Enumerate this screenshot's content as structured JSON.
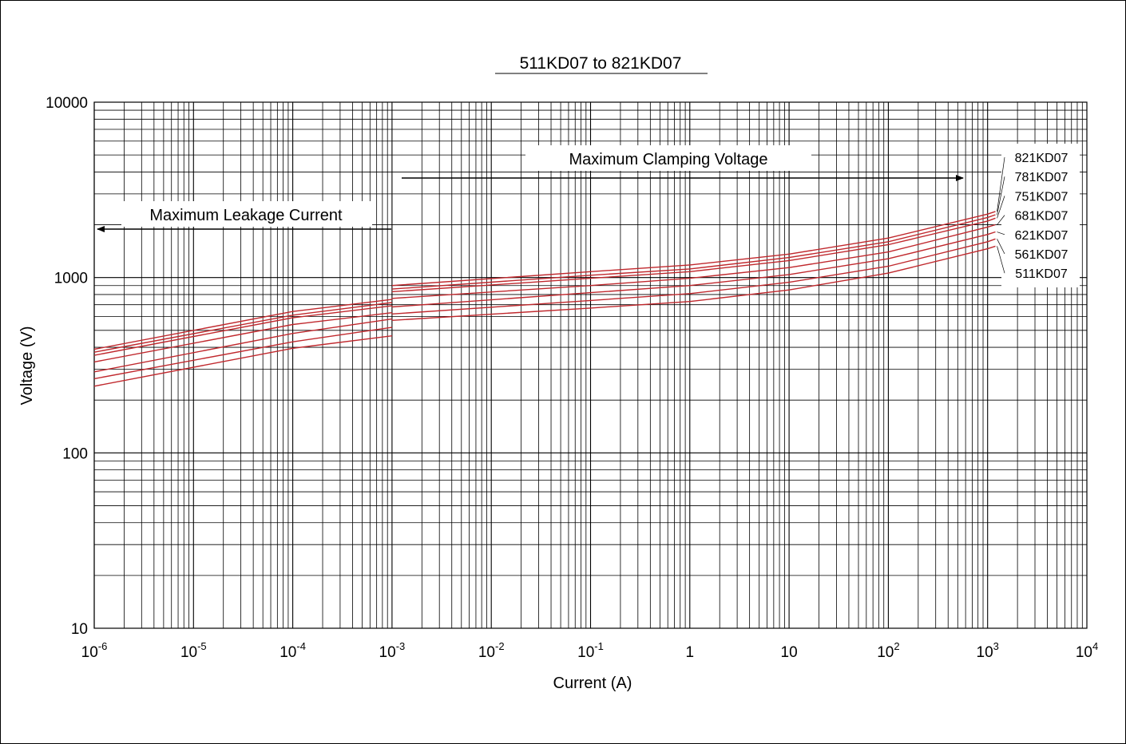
{
  "chart_data": {
    "type": "line",
    "title": "511KD07 to 821KD07",
    "xlabel": "Current (A)",
    "ylabel": "Voltage (V)",
    "x_scale": "log",
    "y_scale": "log",
    "xlim": [
      1e-06,
      10000
    ],
    "ylim": [
      10,
      10000
    ],
    "grid": true,
    "x_ticks": [
      {
        "base": "10",
        "exp": "-6",
        "value": 1e-06
      },
      {
        "base": "10",
        "exp": "-5",
        "value": 1e-05
      },
      {
        "base": "10",
        "exp": "-4",
        "value": 0.0001
      },
      {
        "base": "10",
        "exp": "-3",
        "value": 0.001
      },
      {
        "base": "10",
        "exp": "-2",
        "value": 0.01
      },
      {
        "base": "10",
        "exp": "-1",
        "value": 0.1
      },
      {
        "base": "1",
        "exp": "",
        "value": 1
      },
      {
        "base": "10",
        "exp": "",
        "value": 10
      },
      {
        "base": "10",
        "exp": "2",
        "value": 100
      },
      {
        "base": "10",
        "exp": "3",
        "value": 1000
      },
      {
        "base": "10",
        "exp": "4",
        "value": 10000
      }
    ],
    "y_ticks": [
      {
        "label": "10000",
        "value": 10000
      },
      {
        "label": "1000",
        "value": 1000
      },
      {
        "label": "100",
        "value": 100
      },
      {
        "label": "10",
        "value": 10
      }
    ],
    "annotations": {
      "leakage": "Maximum Leakage Current",
      "clamping": "Maximum Clamping Voltage"
    },
    "line_color": "#c0282d",
    "series": [
      {
        "name": "821KD07",
        "leakage": [
          [
            1e-06,
            390
          ],
          [
            0.0001,
            640
          ],
          [
            0.001,
            750
          ]
        ],
        "clamping": [
          [
            0.001,
            900
          ],
          [
            0.1,
            1080
          ],
          [
            1,
            1180
          ],
          [
            10,
            1360
          ],
          [
            100,
            1680
          ],
          [
            1000,
            2300
          ],
          [
            1200,
            2380
          ]
        ]
      },
      {
        "name": "781KD07",
        "leakage": [
          [
            1e-06,
            375
          ],
          [
            0.0001,
            610
          ],
          [
            0.001,
            720
          ]
        ],
        "clamping": [
          [
            0.001,
            860
          ],
          [
            0.1,
            1030
          ],
          [
            1,
            1120
          ],
          [
            10,
            1300
          ],
          [
            100,
            1600
          ],
          [
            1000,
            2200
          ],
          [
            1200,
            2280
          ]
        ]
      },
      {
        "name": "751KD07",
        "leakage": [
          [
            1e-06,
            360
          ],
          [
            0.0001,
            590
          ],
          [
            0.001,
            690
          ]
        ],
        "clamping": [
          [
            0.001,
            830
          ],
          [
            0.1,
            990
          ],
          [
            1,
            1080
          ],
          [
            10,
            1250
          ],
          [
            100,
            1540
          ],
          [
            1000,
            2100
          ],
          [
            1200,
            2180
          ]
        ]
      },
      {
        "name": "681KD07",
        "leakage": [
          [
            1e-06,
            330
          ],
          [
            0.0001,
            540
          ],
          [
            0.001,
            630
          ]
        ],
        "clamping": [
          [
            0.001,
            760
          ],
          [
            0.1,
            900
          ],
          [
            1,
            990
          ],
          [
            10,
            1140
          ],
          [
            100,
            1400
          ],
          [
            1000,
            1940
          ],
          [
            1200,
            2000
          ]
        ]
      },
      {
        "name": "621KD07",
        "leakage": [
          [
            1e-06,
            290
          ],
          [
            0.0001,
            480
          ],
          [
            0.001,
            580
          ]
        ],
        "clamping": [
          [
            0.001,
            680
          ],
          [
            0.1,
            820
          ],
          [
            1,
            900
          ],
          [
            10,
            1040
          ],
          [
            100,
            1280
          ],
          [
            1000,
            1760
          ],
          [
            1200,
            1820
          ]
        ]
      },
      {
        "name": "561KD07",
        "leakage": [
          [
            1e-06,
            265
          ],
          [
            0.0001,
            430
          ],
          [
            0.001,
            520
          ]
        ],
        "clamping": [
          [
            0.001,
            620
          ],
          [
            0.1,
            740
          ],
          [
            1,
            810
          ],
          [
            10,
            940
          ],
          [
            100,
            1160
          ],
          [
            1000,
            1600
          ],
          [
            1200,
            1660
          ]
        ]
      },
      {
        "name": "511KD07",
        "leakage": [
          [
            1e-06,
            240
          ],
          [
            0.0001,
            395
          ],
          [
            0.001,
            465
          ]
        ],
        "clamping": [
          [
            0.001,
            570
          ],
          [
            0.1,
            670
          ],
          [
            1,
            730
          ],
          [
            10,
            850
          ],
          [
            100,
            1060
          ],
          [
            1000,
            1460
          ],
          [
            1200,
            1510
          ]
        ]
      }
    ]
  }
}
